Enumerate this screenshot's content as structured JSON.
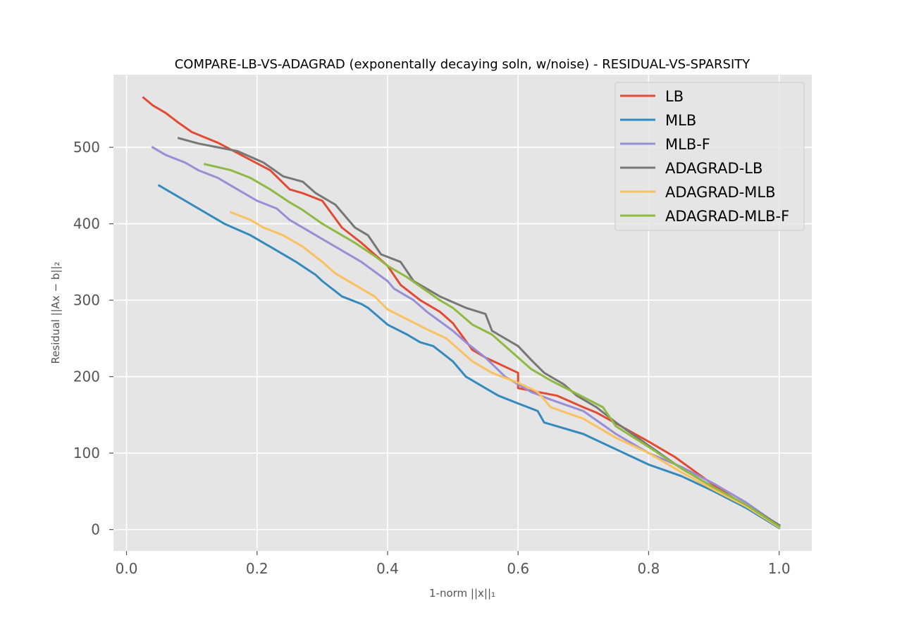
{
  "chart_data": {
    "type": "line",
    "title": "COMPARE-LB-VS-ADAGRAD (exponentally decaying soln, w/noise) - RESIDUAL-VS-SPARSITY",
    "xlabel": "1-norm ||x||₁",
    "ylabel": "Residual ||Ax − b||₂",
    "xlim": [
      -0.02,
      1.05
    ],
    "ylim": [
      -28,
      595
    ],
    "xticks": [
      0.0,
      0.2,
      0.4,
      0.6,
      0.8,
      1.0
    ],
    "xtick_labels": [
      "0.0",
      "0.2",
      "0.4",
      "0.6",
      "0.8",
      "1.0"
    ],
    "yticks": [
      0,
      100,
      200,
      300,
      400,
      500
    ],
    "ytick_labels": [
      "0",
      "100",
      "200",
      "300",
      "400",
      "500"
    ],
    "grid": true,
    "legend_position": "top-right",
    "series": [
      {
        "name": "LB",
        "color": "#E24A33",
        "points": [
          [
            0.026,
            565
          ],
          [
            0.04,
            555
          ],
          [
            0.06,
            545
          ],
          [
            0.08,
            532
          ],
          [
            0.1,
            520
          ],
          [
            0.14,
            506
          ],
          [
            0.18,
            488
          ],
          [
            0.22,
            470
          ],
          [
            0.25,
            445
          ],
          [
            0.27,
            440
          ],
          [
            0.3,
            430
          ],
          [
            0.33,
            395
          ],
          [
            0.36,
            375
          ],
          [
            0.4,
            345
          ],
          [
            0.42,
            320
          ],
          [
            0.45,
            300
          ],
          [
            0.48,
            285
          ],
          [
            0.5,
            270
          ],
          [
            0.53,
            235
          ],
          [
            0.55,
            225
          ],
          [
            0.6,
            205
          ],
          [
            0.6,
            185
          ],
          [
            0.66,
            175
          ],
          [
            0.7,
            160
          ],
          [
            0.72,
            153
          ],
          [
            0.8,
            115
          ],
          [
            0.84,
            95
          ],
          [
            0.9,
            58
          ],
          [
            0.95,
            30
          ],
          [
            1.0,
            4
          ]
        ]
      },
      {
        "name": "MLB",
        "color": "#348ABD",
        "points": [
          [
            0.05,
            450
          ],
          [
            0.07,
            440
          ],
          [
            0.09,
            430
          ],
          [
            0.12,
            415
          ],
          [
            0.15,
            400
          ],
          [
            0.19,
            385
          ],
          [
            0.22,
            370
          ],
          [
            0.26,
            350
          ],
          [
            0.29,
            333
          ],
          [
            0.3,
            325
          ],
          [
            0.33,
            305
          ],
          [
            0.36,
            295
          ],
          [
            0.37,
            290
          ],
          [
            0.4,
            268
          ],
          [
            0.43,
            255
          ],
          [
            0.45,
            245
          ],
          [
            0.47,
            240
          ],
          [
            0.5,
            220
          ],
          [
            0.52,
            200
          ],
          [
            0.55,
            185
          ],
          [
            0.57,
            175
          ],
          [
            0.6,
            165
          ],
          [
            0.63,
            155
          ],
          [
            0.64,
            140
          ],
          [
            0.7,
            125
          ],
          [
            0.75,
            105
          ],
          [
            0.8,
            85
          ],
          [
            0.85,
            70
          ],
          [
            0.9,
            50
          ],
          [
            0.95,
            28
          ],
          [
            1.0,
            2
          ]
        ]
      },
      {
        "name": "MLB-F",
        "color": "#988ED5",
        "points": [
          [
            0.04,
            500
          ],
          [
            0.06,
            490
          ],
          [
            0.09,
            480
          ],
          [
            0.11,
            470
          ],
          [
            0.14,
            460
          ],
          [
            0.17,
            445
          ],
          [
            0.2,
            430
          ],
          [
            0.23,
            420
          ],
          [
            0.25,
            405
          ],
          [
            0.28,
            390
          ],
          [
            0.3,
            380
          ],
          [
            0.33,
            365
          ],
          [
            0.36,
            350
          ],
          [
            0.4,
            325
          ],
          [
            0.41,
            315
          ],
          [
            0.44,
            300
          ],
          [
            0.46,
            285
          ],
          [
            0.5,
            260
          ],
          [
            0.52,
            245
          ],
          [
            0.55,
            225
          ],
          [
            0.58,
            200
          ],
          [
            0.62,
            180
          ],
          [
            0.65,
            170
          ],
          [
            0.7,
            155
          ],
          [
            0.75,
            125
          ],
          [
            0.8,
            100
          ],
          [
            0.85,
            82
          ],
          [
            0.9,
            60
          ],
          [
            0.95,
            35
          ],
          [
            1.0,
            5
          ]
        ]
      },
      {
        "name": "ADAGRAD-LB",
        "color": "#777777",
        "points": [
          [
            0.08,
            512
          ],
          [
            0.11,
            505
          ],
          [
            0.14,
            500
          ],
          [
            0.17,
            495
          ],
          [
            0.21,
            480
          ],
          [
            0.24,
            462
          ],
          [
            0.27,
            455
          ],
          [
            0.29,
            440
          ],
          [
            0.32,
            425
          ],
          [
            0.35,
            395
          ],
          [
            0.37,
            385
          ],
          [
            0.39,
            360
          ],
          [
            0.42,
            350
          ],
          [
            0.44,
            325
          ],
          [
            0.46,
            315
          ],
          [
            0.48,
            305
          ],
          [
            0.52,
            290
          ],
          [
            0.55,
            282
          ],
          [
            0.56,
            260
          ],
          [
            0.6,
            240
          ],
          [
            0.62,
            222
          ],
          [
            0.64,
            205
          ],
          [
            0.67,
            190
          ],
          [
            0.69,
            175
          ],
          [
            0.72,
            160
          ],
          [
            0.75,
            140
          ],
          [
            0.8,
            110
          ],
          [
            0.85,
            80
          ],
          [
            0.9,
            55
          ],
          [
            0.95,
            32
          ],
          [
            1.0,
            6
          ]
        ]
      },
      {
        "name": "ADAGRAD-MLB",
        "color": "#FBC15E",
        "points": [
          [
            0.16,
            415
          ],
          [
            0.19,
            405
          ],
          [
            0.21,
            395
          ],
          [
            0.24,
            385
          ],
          [
            0.27,
            370
          ],
          [
            0.3,
            350
          ],
          [
            0.32,
            335
          ],
          [
            0.35,
            320
          ],
          [
            0.38,
            305
          ],
          [
            0.4,
            288
          ],
          [
            0.43,
            275
          ],
          [
            0.46,
            262
          ],
          [
            0.49,
            250
          ],
          [
            0.51,
            235
          ],
          [
            0.53,
            220
          ],
          [
            0.56,
            205
          ],
          [
            0.6,
            192
          ],
          [
            0.63,
            180
          ],
          [
            0.65,
            160
          ],
          [
            0.7,
            145
          ],
          [
            0.75,
            120
          ],
          [
            0.8,
            100
          ],
          [
            0.85,
            75
          ],
          [
            0.9,
            52
          ],
          [
            0.95,
            30
          ],
          [
            1.0,
            3
          ]
        ]
      },
      {
        "name": "ADAGRAD-MLB-F",
        "color": "#8EBA42",
        "points": [
          [
            0.12,
            478
          ],
          [
            0.16,
            470
          ],
          [
            0.19,
            460
          ],
          [
            0.22,
            445
          ],
          [
            0.25,
            428
          ],
          [
            0.27,
            418
          ],
          [
            0.3,
            400
          ],
          [
            0.32,
            390
          ],
          [
            0.35,
            375
          ],
          [
            0.38,
            358
          ],
          [
            0.4,
            345
          ],
          [
            0.43,
            330
          ],
          [
            0.45,
            318
          ],
          [
            0.48,
            300
          ],
          [
            0.5,
            290
          ],
          [
            0.53,
            268
          ],
          [
            0.56,
            255
          ],
          [
            0.6,
            225
          ],
          [
            0.62,
            210
          ],
          [
            0.65,
            195
          ],
          [
            0.68,
            182
          ],
          [
            0.73,
            160
          ],
          [
            0.75,
            135
          ],
          [
            0.8,
            108
          ],
          [
            0.85,
            80
          ],
          [
            0.9,
            55
          ],
          [
            0.95,
            32
          ],
          [
            1.0,
            4
          ]
        ]
      }
    ]
  }
}
